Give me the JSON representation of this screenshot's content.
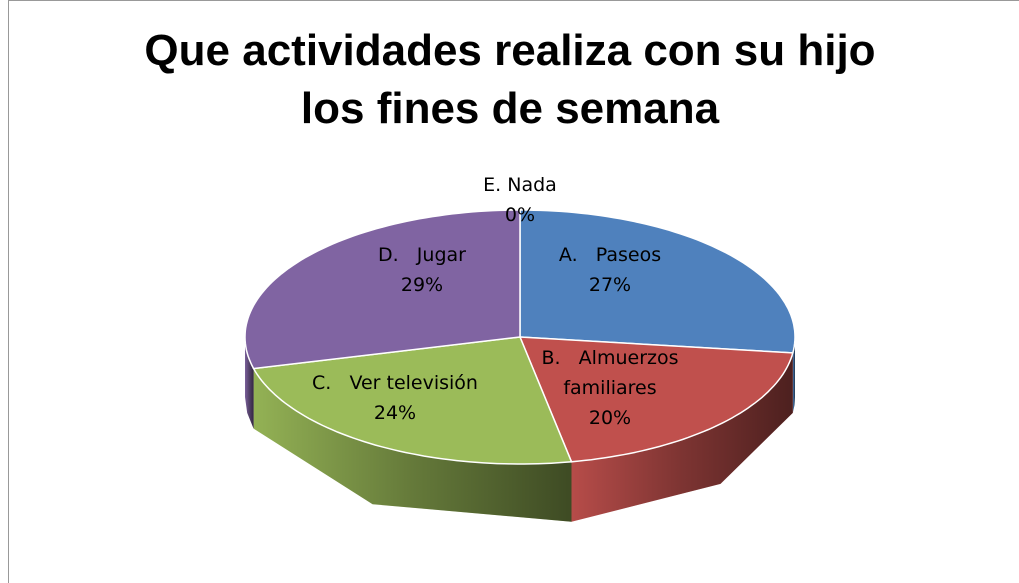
{
  "chart_data": {
    "type": "pie3d",
    "title": "Que actividades realiza con su hijo los fines de semana",
    "categories": [
      "A.   Paseos",
      "B.   Almuerzos familiares",
      "C.   Ver televisión",
      "D.   Jugar",
      "E. Nada"
    ],
    "values": [
      27,
      20,
      24,
      29,
      0
    ],
    "value_labels": [
      "27%",
      "20%",
      "24%",
      "29%",
      "0%"
    ],
    "colors": [
      "#4f81bd",
      "#c0504d",
      "#9bbb59",
      "#8064a2",
      "#f79646"
    ]
  }
}
